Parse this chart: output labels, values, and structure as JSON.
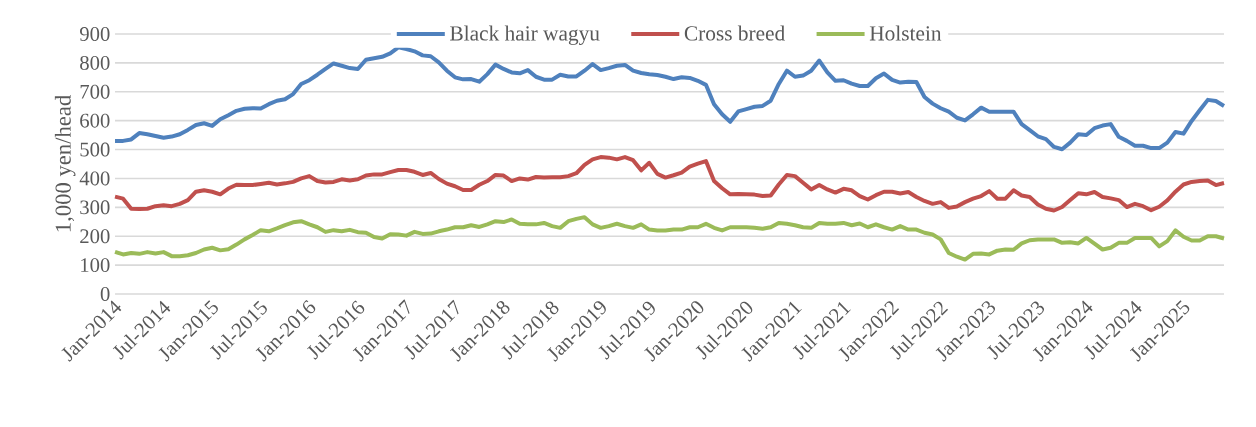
{
  "chart_data": {
    "type": "line",
    "ylabel": "1,000 yen/head",
    "x": [
      "2014-01",
      "2014-02",
      "2014-03",
      "2014-04",
      "2014-05",
      "2014-06",
      "2014-07",
      "2014-08",
      "2014-09",
      "2014-10",
      "2014-11",
      "2014-12",
      "2015-01",
      "2015-02",
      "2015-03",
      "2015-04",
      "2015-05",
      "2015-06",
      "2015-07",
      "2015-08",
      "2015-09",
      "2015-10",
      "2015-11",
      "2015-12",
      "2016-01",
      "2016-02",
      "2016-03",
      "2016-04",
      "2016-05",
      "2016-06",
      "2016-07",
      "2016-08",
      "2016-09",
      "2016-10",
      "2016-11",
      "2016-12",
      "2017-01",
      "2017-02",
      "2017-03",
      "2017-04",
      "2017-05",
      "2017-06",
      "2017-07",
      "2017-08",
      "2017-09",
      "2017-10",
      "2017-11",
      "2017-12",
      "2018-01",
      "2018-02",
      "2018-03",
      "2018-04",
      "2018-05",
      "2018-06",
      "2018-07",
      "2018-08",
      "2018-09",
      "2018-10",
      "2018-11",
      "2018-12",
      "2019-01",
      "2019-02",
      "2019-03",
      "2019-04",
      "2019-05",
      "2019-06",
      "2019-07",
      "2019-08",
      "2019-09",
      "2019-10",
      "2019-11",
      "2019-12",
      "2020-01",
      "2020-02",
      "2020-03",
      "2020-04",
      "2020-05",
      "2020-06",
      "2020-07",
      "2020-08",
      "2020-09",
      "2020-10",
      "2020-11",
      "2020-12",
      "2021-01",
      "2021-02",
      "2021-03",
      "2021-04",
      "2021-05",
      "2021-06",
      "2021-07",
      "2021-08",
      "2021-09",
      "2021-10",
      "2021-11",
      "2021-12",
      "2022-01",
      "2022-02",
      "2022-03",
      "2022-04",
      "2022-05",
      "2022-06",
      "2022-07",
      "2022-08",
      "2022-09",
      "2022-10",
      "2022-11",
      "2022-12",
      "2023-01",
      "2023-02",
      "2023-03",
      "2023-04",
      "2023-05",
      "2023-06",
      "2023-07",
      "2023-08",
      "2023-09",
      "2023-10",
      "2023-11",
      "2023-12",
      "2024-01",
      "2024-02",
      "2024-03",
      "2024-04",
      "2024-05",
      "2024-06",
      "2024-07",
      "2024-08",
      "2024-09",
      "2024-10",
      "2024-11",
      "2024-12",
      "2025-01",
      "2025-02",
      "2025-03",
      "2025-04",
      "2025-05",
      "2025-06"
    ],
    "series": [
      {
        "name": "Black hair wagyu",
        "color": "#4f81bd",
        "values": [
          530,
          530,
          535,
          557,
          553,
          547,
          541,
          545,
          553,
          568,
          585,
          591,
          582,
          605,
          619,
          634,
          641,
          643,
          642,
          657,
          669,
          674,
          692,
          727,
          740,
          759,
          779,
          798,
          790,
          782,
          779,
          811,
          816,
          821,
          833,
          854,
          848,
          840,
          826,
          823,
          802,
          773,
          750,
          743,
          744,
          735,
          761,
          794,
          779,
          767,
          764,
          775,
          752,
          742,
          742,
          759,
          753,
          753,
          773,
          796,
          775,
          782,
          790,
          793,
          773,
          765,
          761,
          758,
          752,
          744,
          750,
          748,
          738,
          724,
          657,
          622,
          596,
          632,
          640,
          648,
          651,
          669,
          727,
          773,
          752,
          756,
          773,
          808,
          767,
          738,
          740,
          728,
          720,
          720,
          747,
          763,
          741,
          732,
          735,
          734,
          682,
          659,
          643,
          631,
          610,
          601,
          622,
          645,
          631,
          631,
          631,
          631,
          588,
          567,
          546,
          536,
          509,
          501,
          524,
          553,
          550,
          574,
          583,
          588,
          544,
          530,
          513,
          513,
          505,
          505,
          524,
          561,
          555,
          599,
          636,
          672,
          668,
          651
        ]
      },
      {
        "name": "Cross breed",
        "color": "#c0504d",
        "values": [
          337,
          330,
          295,
          294,
          295,
          304,
          307,
          304,
          312,
          325,
          354,
          359,
          354,
          345,
          365,
          378,
          377,
          377,
          381,
          385,
          379,
          383,
          388,
          400,
          408,
          391,
          386,
          388,
          397,
          393,
          397,
          410,
          414,
          414,
          422,
          429,
          429,
          423,
          412,
          419,
          398,
          382,
          373,
          360,
          360,
          378,
          391,
          412,
          410,
          391,
          400,
          396,
          405,
          403,
          404,
          404,
          408,
          418,
          447,
          466,
          474,
          472,
          466,
          474,
          463,
          428,
          454,
          416,
          403,
          411,
          420,
          441,
          451,
          460,
          391,
          366,
          345,
          346,
          345,
          344,
          339,
          341,
          379,
          412,
          408,
          385,
          362,
          377,
          362,
          351,
          364,
          359,
          339,
          327,
          342,
          354,
          354,
          348,
          353,
          336,
          322,
          312,
          318,
          298,
          303,
          318,
          330,
          339,
          356,
          330,
          330,
          359,
          341,
          336,
          310,
          295,
          289,
          301,
          325,
          349,
          345,
          353,
          336,
          331,
          325,
          301,
          312,
          304,
          290,
          302,
          324,
          354,
          379,
          388,
          391,
          393,
          377,
          384
        ]
      },
      {
        "name": "Holstein",
        "color": "#9bbb59",
        "values": [
          146,
          137,
          142,
          139,
          145,
          140,
          145,
          131,
          131,
          134,
          142,
          154,
          160,
          151,
          155,
          171,
          189,
          204,
          221,
          217,
          227,
          238,
          248,
          252,
          241,
          231,
          215,
          221,
          217,
          222,
          214,
          212,
          197,
          192,
          207,
          206,
          202,
          215,
          208,
          209,
          217,
          223,
          231,
          231,
          238,
          232,
          241,
          252,
          249,
          258,
          243,
          241,
          241,
          246,
          235,
          229,
          252,
          260,
          266,
          241,
          229,
          235,
          243,
          235,
          229,
          241,
          223,
          220,
          220,
          223,
          223,
          231,
          231,
          243,
          229,
          220,
          231,
          231,
          231,
          229,
          226,
          231,
          246,
          243,
          238,
          231,
          229,
          246,
          243,
          243,
          246,
          238,
          244,
          231,
          241,
          231,
          223,
          235,
          223,
          223,
          212,
          206,
          189,
          142,
          129,
          119,
          139,
          140,
          137,
          150,
          154,
          153,
          175,
          186,
          189,
          189,
          189,
          177,
          179,
          175,
          194,
          174,
          154,
          160,
          177,
          177,
          194,
          194,
          194,
          165,
          183,
          220,
          198,
          185,
          185,
          200,
          200,
          192
        ]
      }
    ],
    "xlim": [
      "2014-01",
      "2025-06"
    ],
    "xticks": [
      {
        "value": "2014-01",
        "label": "Jan-2014"
      },
      {
        "value": "2014-07",
        "label": "Jul-2014"
      },
      {
        "value": "2015-01",
        "label": "Jan-2015"
      },
      {
        "value": "2015-07",
        "label": "Jul-2015"
      },
      {
        "value": "2016-01",
        "label": "Jan-2016"
      },
      {
        "value": "2016-07",
        "label": "Jul-2016"
      },
      {
        "value": "2017-01",
        "label": "Jan-2017"
      },
      {
        "value": "2017-07",
        "label": "Jul-2017"
      },
      {
        "value": "2018-01",
        "label": "Jan-2018"
      },
      {
        "value": "2018-07",
        "label": "Jul-2018"
      },
      {
        "value": "2019-01",
        "label": "Jan-2019"
      },
      {
        "value": "2019-07",
        "label": "Jul-2019"
      },
      {
        "value": "2020-01",
        "label": "Jan-2020"
      },
      {
        "value": "2020-07",
        "label": "Jul-2020"
      },
      {
        "value": "2021-01",
        "label": "Jan-2021"
      },
      {
        "value": "2021-07",
        "label": "Jul-2021"
      },
      {
        "value": "2022-01",
        "label": "Jan-2022"
      },
      {
        "value": "2022-07",
        "label": "Jul-2022"
      },
      {
        "value": "2023-01",
        "label": "Jan-2023"
      },
      {
        "value": "2023-07",
        "label": "Jul-2023"
      },
      {
        "value": "2024-01",
        "label": "Jan-2024"
      },
      {
        "value": "2024-07",
        "label": "Jul-2024"
      },
      {
        "value": "2025-01",
        "label": "Jan-2025"
      }
    ],
    "ylim": [
      0,
      900
    ],
    "yticks": [
      0,
      100,
      200,
      300,
      400,
      500,
      600,
      700,
      800,
      900
    ],
    "grid": "y",
    "legend": "top",
    "marker": "none",
    "line_style": "solid"
  }
}
